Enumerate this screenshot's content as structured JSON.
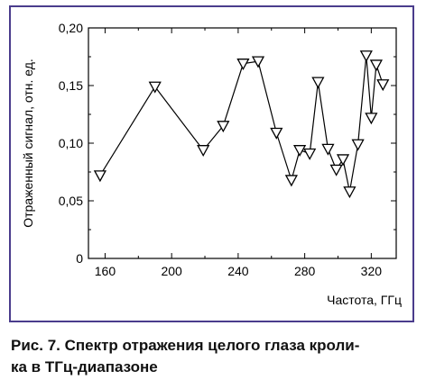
{
  "chart_data": {
    "type": "line",
    "title": "",
    "xlabel": "Частота, ГГц",
    "ylabel": "Отраженный сигнал, отн. ед.",
    "xlim": [
      150,
      335
    ],
    "ylim": [
      0,
      0.2
    ],
    "xticks": [
      160,
      200,
      240,
      280,
      320
    ],
    "yticks": [
      0,
      0.05,
      0.1,
      0.15,
      0.2
    ],
    "xtick_labels": [
      "160",
      "200",
      "240",
      "280",
      "320"
    ],
    "ytick_labels": [
      "0",
      "0,05",
      "0,10",
      "0,15",
      "0,20"
    ],
    "marker": "inverted-triangle",
    "grid": false,
    "series": [
      {
        "x": [
          157,
          190,
          219,
          231,
          243,
          252,
          263,
          272,
          277,
          283,
          288,
          294,
          299,
          303,
          307,
          312,
          317,
          320,
          323,
          327
        ],
        "y": [
          0.072,
          0.149,
          0.094,
          0.115,
          0.169,
          0.171,
          0.109,
          0.068,
          0.094,
          0.091,
          0.153,
          0.095,
          0.077,
          0.086,
          0.058,
          0.099,
          0.176,
          0.122,
          0.168,
          0.151
        ]
      }
    ]
  },
  "caption": {
    "line1": "Рис. 7. Спектр отражения целого глаза кроли-",
    "line2": "ка в ТГц-диапазоне"
  },
  "colors": {
    "frame": "#4a3c8c",
    "line": "#000000"
  }
}
